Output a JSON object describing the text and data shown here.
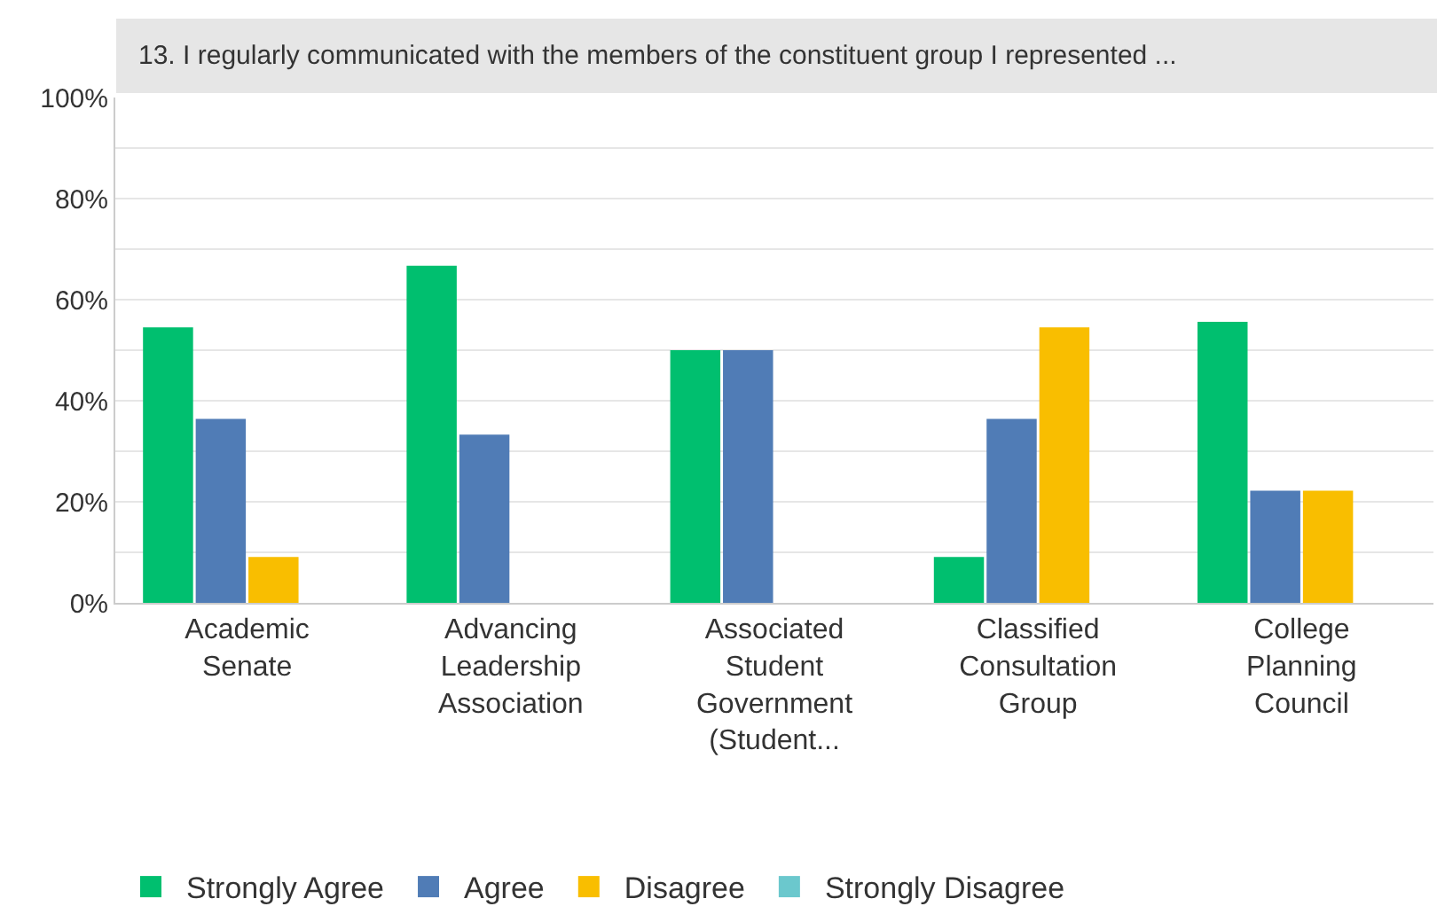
{
  "chart_data": {
    "type": "bar",
    "title": "13. I regularly communicated with the members of the constituent group I represented ...",
    "categories": [
      "Academic Senate",
      "Advancing Leadership Association",
      "Associated Student Government (Student...",
      "Classified Consultation Group",
      "College Planning Council"
    ],
    "series": [
      {
        "name": "Strongly Agree",
        "color": "#00bf6f",
        "values": [
          54.5,
          66.7,
          50,
          9.1,
          55.6
        ]
      },
      {
        "name": "Agree",
        "color": "#507cb6",
        "values": [
          36.4,
          33.3,
          50,
          36.4,
          22.2
        ]
      },
      {
        "name": "Disagree",
        "color": "#f9be00",
        "values": [
          9.1,
          0,
          0,
          54.5,
          22.2
        ]
      },
      {
        "name": "Strongly Disagree",
        "color": "#6bc8cd",
        "values": [
          0,
          0,
          0,
          0,
          0
        ]
      }
    ],
    "ylim": [
      0,
      100
    ],
    "yticks": [
      {
        "value": 0,
        "label": "0%"
      },
      {
        "value": 10,
        "label": null
      },
      {
        "value": 20,
        "label": "20%"
      },
      {
        "value": 30,
        "label": null
      },
      {
        "value": 40,
        "label": "40%"
      },
      {
        "value": 50,
        "label": null
      },
      {
        "value": 60,
        "label": "60%"
      },
      {
        "value": 70,
        "label": null
      },
      {
        "value": 80,
        "label": "80%"
      },
      {
        "value": 90,
        "label": null
      },
      {
        "value": 100,
        "label": "100%"
      }
    ],
    "grid": "y",
    "legend": "bottom"
  }
}
